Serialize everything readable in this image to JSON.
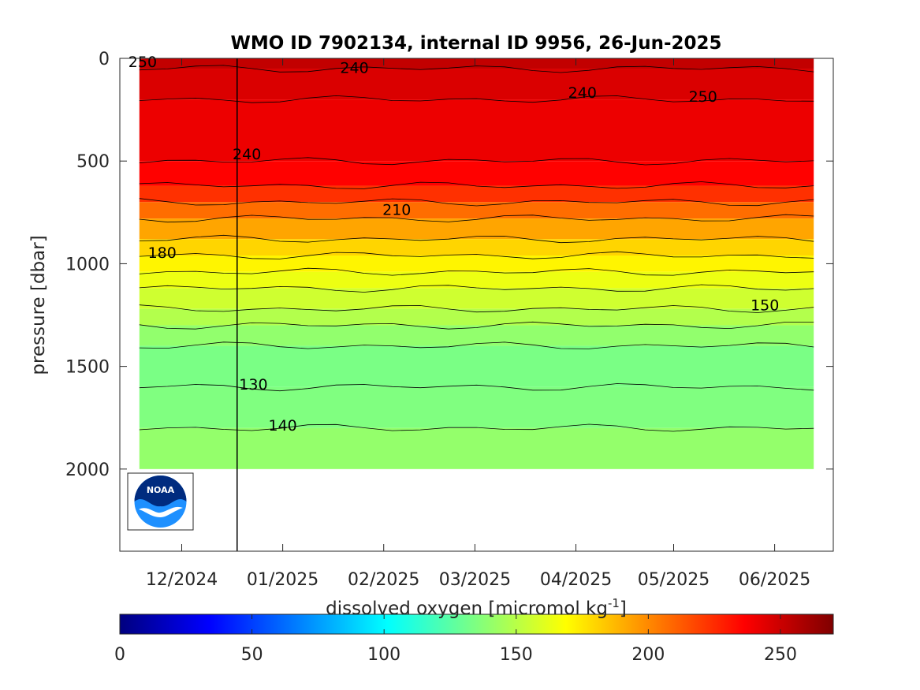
{
  "chart_data": {
    "type": "heatmap",
    "title": "WMO ID 7902134, internal ID 9956, 26-Jun-2025",
    "ylabel": "pressure [dbar]",
    "colorbar_label": "dissolved oxygen [micromol kg",
    "colorbar_label_sup": "-1",
    "colorbar_label_close": "]",
    "y_reversed": true,
    "ylim": [
      0,
      2400
    ],
    "y_ticks": [
      "0",
      "500",
      "1000",
      "1500",
      "2000"
    ],
    "y_tick_values": [
      0,
      500,
      1000,
      1500,
      2000
    ],
    "x_ticks": [
      "12/2024",
      "01/2025",
      "02/2025",
      "03/2025",
      "04/2025",
      "05/2025",
      "06/2025"
    ],
    "x_tick_days": [
      0,
      31,
      62,
      90,
      121,
      151,
      182
    ],
    "x_range_days": [
      -19,
      200
    ],
    "data_start_day": -13,
    "data_end_day": 194,
    "data_max_pressure": 2000,
    "marker_day": 17,
    "clim": [
      0,
      270
    ],
    "colorbar_ticks": [
      "0",
      "50",
      "100",
      "150",
      "200",
      "250"
    ],
    "colorbar_tick_values": [
      0,
      50,
      100,
      150,
      200,
      250
    ],
    "layers": [
      {
        "depth": 0,
        "oxygen": 255
      },
      {
        "depth": 50,
        "oxygen": 250
      },
      {
        "depth": 200,
        "oxygen": 242
      },
      {
        "depth": 500,
        "oxygen": 240
      },
      {
        "depth": 620,
        "oxygen": 232
      },
      {
        "depth": 700,
        "oxygen": 215
      },
      {
        "depth": 780,
        "oxygen": 200
      },
      {
        "depth": 880,
        "oxygen": 185
      },
      {
        "depth": 960,
        "oxygen": 175
      },
      {
        "depth": 1040,
        "oxygen": 168
      },
      {
        "depth": 1120,
        "oxygen": 160
      },
      {
        "depth": 1220,
        "oxygen": 152
      },
      {
        "depth": 1300,
        "oxygen": 145
      },
      {
        "depth": 1400,
        "oxygen": 135
      },
      {
        "depth": 1600,
        "oxygen": 132
      },
      {
        "depth": 1800,
        "oxygen": 138
      },
      {
        "depth": 2000,
        "oxygen": 143
      }
    ],
    "contour_labels": [
      {
        "text": "250",
        "day": -12,
        "pressure": 15
      },
      {
        "text": "240",
        "day": 53,
        "pressure": 45
      },
      {
        "text": "240",
        "day": 123,
        "pressure": 165
      },
      {
        "text": "250",
        "day": 160,
        "pressure": 185
      },
      {
        "text": "240",
        "day": 20,
        "pressure": 465
      },
      {
        "text": "210",
        "day": 66,
        "pressure": 735
      },
      {
        "text": "180",
        "day": -6,
        "pressure": 945
      },
      {
        "text": "150",
        "day": 179,
        "pressure": 1200
      },
      {
        "text": "130",
        "day": 22,
        "pressure": 1585
      },
      {
        "text": "140",
        "day": 31,
        "pressure": 1785
      }
    ]
  },
  "logo": {
    "text": "NOAA"
  }
}
